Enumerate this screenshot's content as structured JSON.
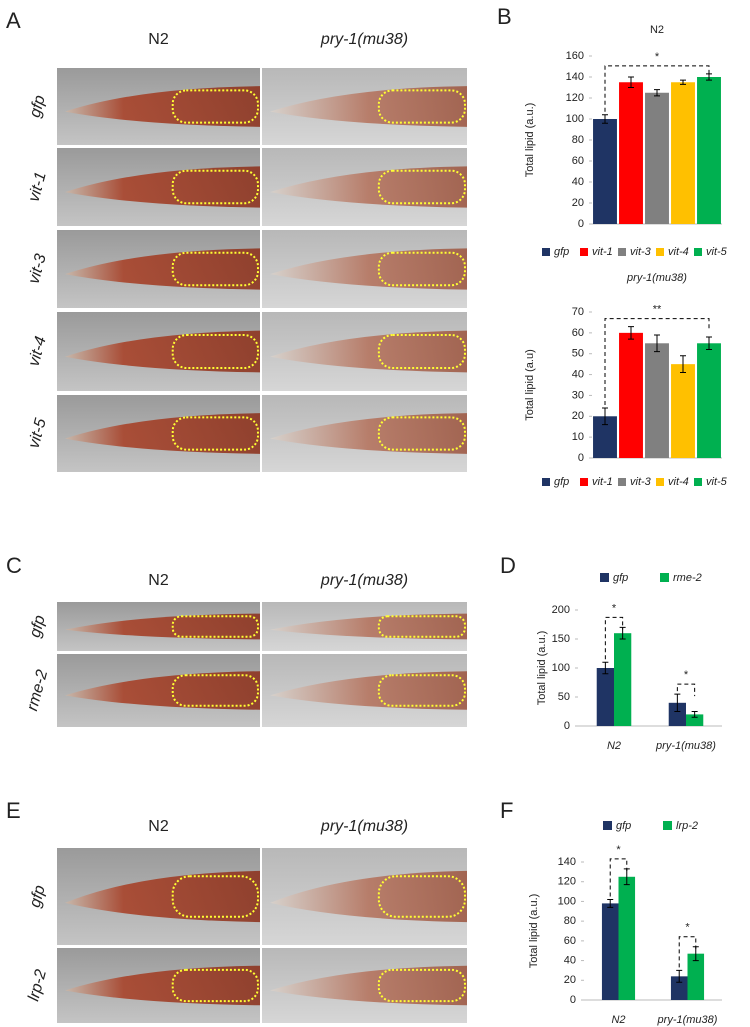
{
  "image_panels": [
    {
      "letter": "A",
      "columns": [
        "N2",
        "pry-1(mu38)"
      ],
      "rows": [
        "gfp",
        "vit-1",
        "vit-3",
        "vit-4",
        "vit-5"
      ]
    },
    {
      "letter": "C",
      "columns": [
        "N2",
        "pry-1(mu38)"
      ],
      "rows": [
        "gfp",
        "rme-2"
      ]
    },
    {
      "letter": "E",
      "columns": [
        "N2",
        "pry-1(mu38)"
      ],
      "rows": [
        "gfp",
        "lrp-2"
      ]
    }
  ],
  "chart_letters": [
    "B",
    "D",
    "F"
  ],
  "chart_data": [
    {
      "type": "bar",
      "title": "N2",
      "y_label": "Total lipid (a.u.)",
      "categories": [
        "gfp",
        "vit-1",
        "vit-3",
        "vit-4",
        "vit-5"
      ],
      "values": [
        100,
        135,
        125,
        135,
        140
      ],
      "errors": [
        4,
        5,
        3,
        2,
        3
      ],
      "colors": [
        "#1f3464",
        "#ff0000",
        "#808080",
        "#ffc000",
        "#00b050"
      ],
      "ylim": [
        0,
        160
      ],
      "yticks": [
        0,
        20,
        40,
        60,
        80,
        100,
        120,
        140,
        160
      ],
      "annotations": [
        "*"
      ]
    },
    {
      "type": "bar",
      "title": "pry-1(mu38)",
      "y_label": "Total lipid (a.u)",
      "categories": [
        "gfp",
        "vit-1",
        "vit-3",
        "vit-4",
        "vit-5"
      ],
      "values": [
        20,
        60,
        55,
        45,
        55
      ],
      "errors": [
        4,
        3,
        4,
        4,
        3
      ],
      "colors": [
        "#1f3464",
        "#ff0000",
        "#808080",
        "#ffc000",
        "#00b050"
      ],
      "ylim": [
        0,
        70
      ],
      "yticks": [
        0,
        10,
        20,
        30,
        40,
        50,
        60,
        70
      ],
      "annotations": [
        "**"
      ]
    },
    {
      "type": "bar",
      "y_label": "Total lipid (a.u.)",
      "categories": [
        "N2",
        "pry-1(mu38)"
      ],
      "series": [
        {
          "name": "gfp",
          "color": "#1f3464",
          "values": [
            100,
            40
          ],
          "errors": [
            10,
            15
          ]
        },
        {
          "name": "rme-2",
          "color": "#00b050",
          "values": [
            160,
            20
          ],
          "errors": [
            10,
            5
          ]
        }
      ],
      "ylim": [
        0,
        200
      ],
      "yticks": [
        0,
        50,
        100,
        150,
        200
      ],
      "annotations": [
        "*",
        "*"
      ]
    },
    {
      "type": "bar",
      "y_label": "Total lipid (a.u.)",
      "categories": [
        "N2",
        "pry-1(mu38)"
      ],
      "series": [
        {
          "name": "gfp",
          "color": "#1f3464",
          "values": [
            98,
            24
          ],
          "errors": [
            4,
            6
          ]
        },
        {
          "name": "lrp-2",
          "color": "#00b050",
          "values": [
            125,
            47
          ],
          "errors": [
            8,
            7
          ]
        }
      ],
      "ylim": [
        0,
        140
      ],
      "yticks": [
        0,
        20,
        40,
        60,
        80,
        100,
        120,
        140
      ],
      "annotations": [
        "*",
        "*"
      ]
    }
  ]
}
